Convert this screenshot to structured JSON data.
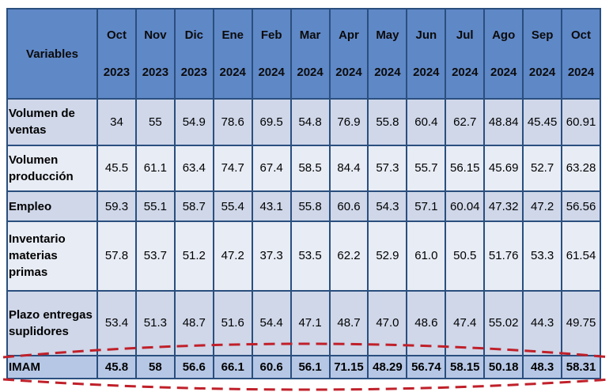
{
  "header": {
    "variables_label": "Variables",
    "columns": [
      {
        "month": "Oct",
        "year": "2023"
      },
      {
        "month": "Nov",
        "year": "2023"
      },
      {
        "month": "Dic",
        "year": "2023"
      },
      {
        "month": "Ene",
        "year": "2024"
      },
      {
        "month": "Feb",
        "year": "2024"
      },
      {
        "month": "Mar",
        "year": "2024"
      },
      {
        "month": "Apr",
        "year": "2024"
      },
      {
        "month": "May",
        "year": "2024"
      },
      {
        "month": "Jun",
        "year": "2024"
      },
      {
        "month": "Jul",
        "year": "2024"
      },
      {
        "month": "Ago",
        "year": "2024"
      },
      {
        "month": "Sep",
        "year": "2024"
      },
      {
        "month": "Oct",
        "year": "2024"
      }
    ]
  },
  "rows": [
    {
      "label": "Volumen de ventas",
      "values": [
        "34",
        "55",
        "54.9",
        "78.6",
        "69.5",
        "54.8",
        "76.9",
        "55.8",
        "60.4",
        "62.7",
        "48.84",
        "45.45",
        "60.91"
      ]
    },
    {
      "label": "Volumen producción",
      "values": [
        "45.5",
        "61.1",
        "63.4",
        "74.7",
        "67.4",
        "58.5",
        "84.4",
        "57.3",
        "55.7",
        "56.15",
        "45.69",
        "52.7",
        "63.28"
      ]
    },
    {
      "label": "Empleo",
      "values": [
        "59.3",
        "55.1",
        "58.7",
        "55.4",
        "43.1",
        "55.8",
        "60.6",
        "54.3",
        "57.1",
        "60.04",
        "47.32",
        "47.2",
        "56.56"
      ]
    },
    {
      "label": "Inventario materias primas",
      "values": [
        "57.8",
        "53.7",
        "51.2",
        "47.2",
        "37.3",
        "53.5",
        "62.2",
        "52.9",
        "61.0",
        "50.5",
        "51.76",
        "53.3",
        "61.54"
      ]
    },
    {
      "label": "Plazo entregas suplidores",
      "values": [
        "53.4",
        "51.3",
        "48.7",
        "51.6",
        "54.4",
        "47.1",
        "48.7",
        "47.0",
        "48.6",
        "47.4",
        "55.02",
        "44.3",
        "49.75"
      ]
    },
    {
      "label": "IMAM",
      "values": [
        "45.8",
        "58",
        "56.6",
        "66.1",
        "60.6",
        "56.1",
        "71.15",
        "48.29",
        "56.74",
        "58.15",
        "50.18",
        "48.3",
        "58.31"
      ]
    }
  ],
  "colors": {
    "header_bg": "#5f88c7",
    "border": "#2a4f7e",
    "row_dark": "#cfd7e9",
    "row_light": "#e8ecf5",
    "highlight_row": "#b6c7e5",
    "ellipse_stroke": "#c0202a"
  }
}
